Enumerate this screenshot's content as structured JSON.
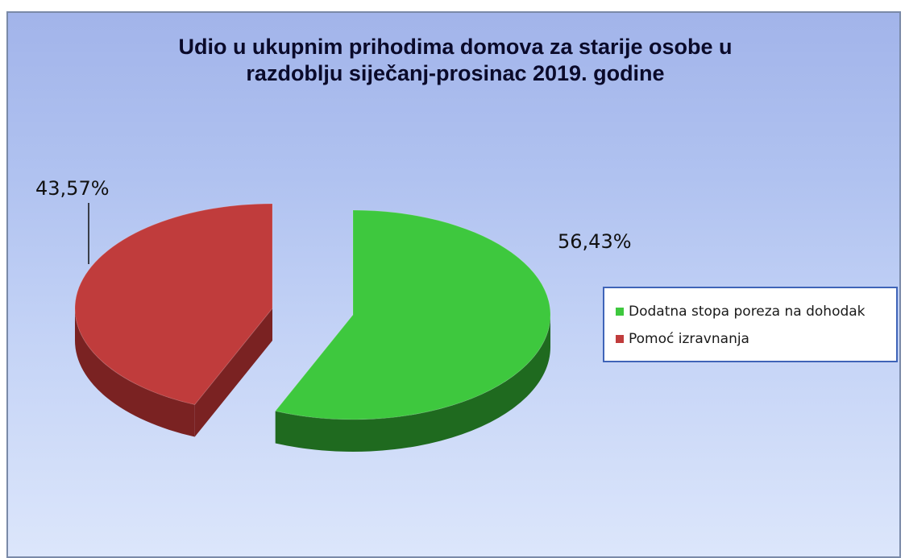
{
  "chart_data": {
    "type": "pie",
    "title_line1": "Udio u ukupnim prihodima domova za starije osobe u",
    "title_line2": "razdoblju siječanj-prosinac 2019. godine",
    "slices": [
      {
        "name": "Dodatna stopa poreza na dohodak",
        "value": 56.43,
        "label": "56,43%",
        "color": "#3ec83e",
        "side_color": "#1f6a1f"
      },
      {
        "name": "Pomoć izravnanja",
        "value": 43.57,
        "label": "43,57%",
        "color": "#c03c3c",
        "side_color": "#7a2222"
      }
    ],
    "legend_position": "right",
    "style": "3d-exploded"
  }
}
